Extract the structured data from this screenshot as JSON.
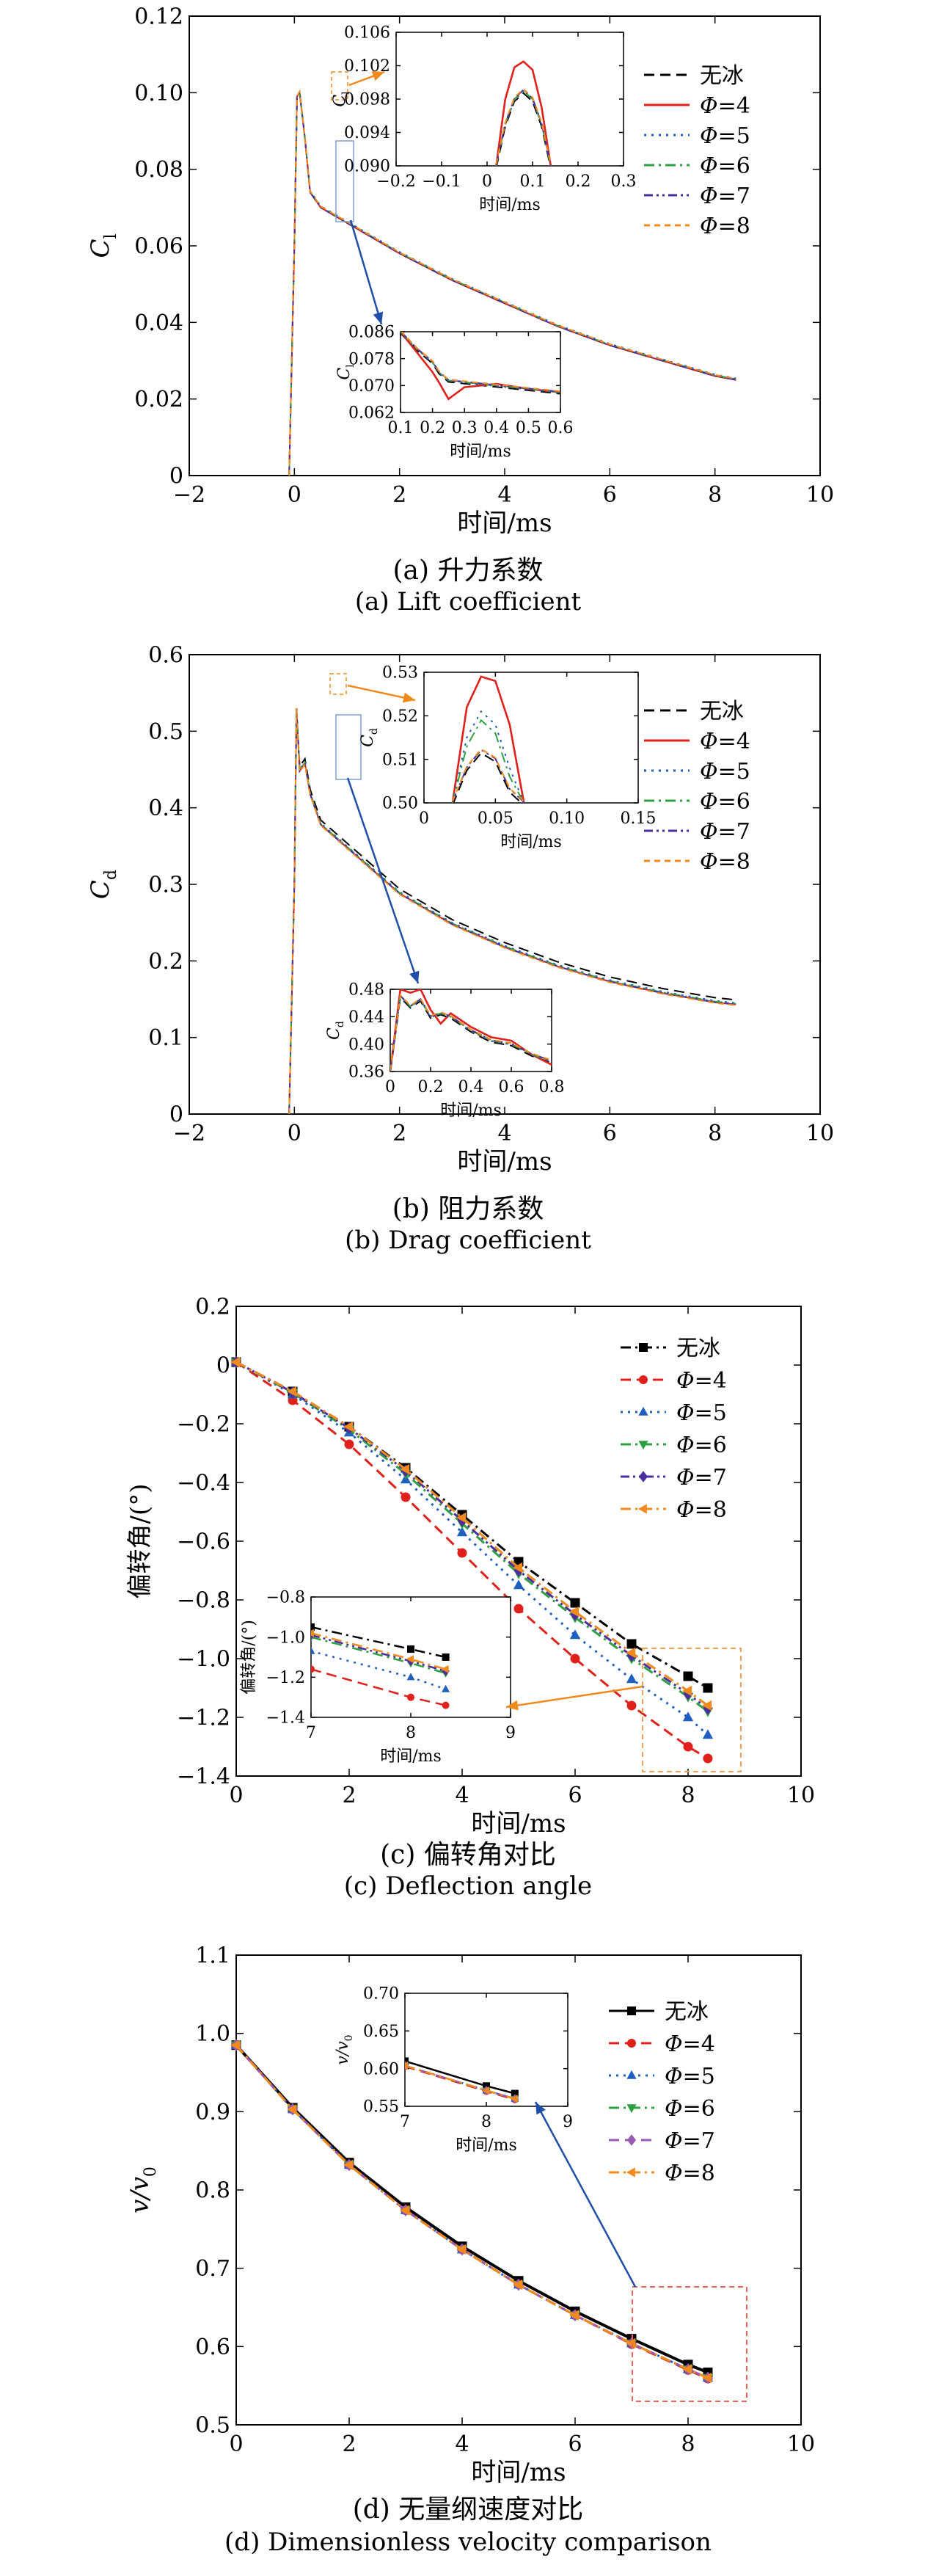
{
  "chart_data": [
    {
      "type": "line",
      "xlabel": "时间/ms",
      "ylabel": "C_l",
      "xlim": [
        -2,
        10
      ],
      "ylim": [
        0,
        0.12
      ],
      "xticks": [
        -2,
        0,
        2,
        4,
        6,
        8,
        10
      ],
      "yticks": [
        0,
        0.02,
        0.04,
        0.06,
        0.08,
        0.1,
        0.12
      ],
      "ytick_labels": [
        "0",
        "0.02",
        "0.04",
        "0.06",
        "0.08",
        "0.10",
        "0.12"
      ],
      "legend_position": "top-right",
      "caption_cn": "(a) 升力系数",
      "caption_en": "(a) Lift coefficient",
      "series": [
        {
          "name": "无冰",
          "color": "#000000",
          "dash": "dashed"
        },
        {
          "name": "Φ=4",
          "color": "#e0201b",
          "dash": "solid"
        },
        {
          "name": "Φ=5",
          "color": "#1f5fbf",
          "dash": "dotted"
        },
        {
          "name": "Φ=6",
          "color": "#2ea043",
          "dash": "dashdot"
        },
        {
          "name": "Φ=7",
          "color": "#4b2f9e",
          "dash": "dashdotdot"
        },
        {
          "name": "Φ=8",
          "color": "#f08a1c",
          "dash": "shortdash"
        }
      ],
      "main_curve": {
        "x": [
          -0.1,
          0.0,
          0.05,
          0.1,
          0.2,
          0.3,
          0.5,
          1,
          2,
          3,
          4,
          5,
          6,
          7,
          8,
          8.4
        ],
        "y": [
          0.0,
          0.06,
          0.099,
          0.1,
          0.088,
          0.074,
          0.07,
          0.066,
          0.058,
          0.051,
          0.045,
          0.039,
          0.034,
          0.03,
          0.026,
          0.025
        ]
      },
      "inset_top": {
        "xlabel": "时间/ms",
        "ylabel": "C_l",
        "xlim": [
          -0.2,
          0.3
        ],
        "ylim": [
          0.09,
          0.106
        ],
        "xticks": [
          -0.2,
          -0.1,
          0,
          0.1,
          0.2,
          0.3
        ],
        "yticks": [
          0.09,
          0.094,
          0.098,
          0.102,
          0.106
        ],
        "ytick_labels": [
          "0.090",
          "0.094",
          "0.098",
          "0.102",
          "0.106"
        ],
        "curves": {
          "x": [
            0.02,
            0.04,
            0.06,
            0.08,
            0.1,
            0.12,
            0.14
          ],
          "phi4": [
            0.09,
            0.098,
            0.1018,
            0.1025,
            0.1015,
            0.097,
            0.09
          ],
          "others": [
            0.09,
            0.095,
            0.098,
            0.099,
            0.098,
            0.095,
            0.09
          ]
        }
      },
      "inset_bottom": {
        "xlabel": "时间/ms",
        "ylabel": "C_l",
        "xlim": [
          0.1,
          0.6
        ],
        "ylim": [
          0.062,
          0.086
        ],
        "xticks": [
          0.1,
          0.2,
          0.3,
          0.4,
          0.5,
          0.6
        ],
        "yticks": [
          0.062,
          0.07,
          0.078,
          0.086
        ],
        "ytick_labels": [
          "0.062",
          "0.070",
          "0.078",
          "0.086"
        ],
        "curves": {
          "x": [
            0.1,
            0.15,
            0.2,
            0.22,
            0.25,
            0.3,
            0.4,
            0.5,
            0.6
          ],
          "phi4": [
            0.086,
            0.08,
            0.074,
            0.071,
            0.066,
            0.0695,
            0.0705,
            0.069,
            0.068
          ],
          "others": [
            0.086,
            0.081,
            0.077,
            0.074,
            0.0715,
            0.071,
            0.07,
            0.069,
            0.068
          ]
        }
      }
    },
    {
      "type": "line",
      "xlabel": "时间/ms",
      "ylabel": "C_d",
      "xlim": [
        -2,
        10
      ],
      "ylim": [
        0,
        0.6
      ],
      "xticks": [
        -2,
        0,
        2,
        4,
        6,
        8,
        10
      ],
      "yticks": [
        0,
        0.1,
        0.2,
        0.3,
        0.4,
        0.5,
        0.6
      ],
      "ytick_labels": [
        "0",
        "0.1",
        "0.2",
        "0.3",
        "0.4",
        "0.5",
        "0.6"
      ],
      "legend_position": "top-right",
      "caption_cn": "(b) 阻力系数",
      "caption_en": "(b) Drag coefficient",
      "series": [
        {
          "name": "无冰",
          "color": "#000000",
          "dash": "dashed"
        },
        {
          "name": "Φ=4",
          "color": "#e0201b",
          "dash": "solid"
        },
        {
          "name": "Φ=5",
          "color": "#1f5fbf",
          "dash": "dotted"
        },
        {
          "name": "Φ=6",
          "color": "#2ea043",
          "dash": "dashdot"
        },
        {
          "name": "Φ=7",
          "color": "#4b2f9e",
          "dash": "dashdotdot"
        },
        {
          "name": "Φ=8",
          "color": "#f08a1c",
          "dash": "shortdash"
        }
      ],
      "main_curve": {
        "x": [
          -0.1,
          0.0,
          0.04,
          0.1,
          0.2,
          0.3,
          0.5,
          1,
          2,
          3,
          4,
          5,
          6,
          7,
          8,
          8.4
        ],
        "y": [
          0.0,
          0.3,
          0.53,
          0.45,
          0.46,
          0.42,
          0.38,
          0.35,
          0.29,
          0.25,
          0.22,
          0.195,
          0.175,
          0.16,
          0.148,
          0.145
        ]
      },
      "inset_top": {
        "xlabel": "时间/ms",
        "ylabel": "C_d",
        "xlim": [
          0,
          0.15
        ],
        "ylim": [
          0.5,
          0.53
        ],
        "xticks": [
          0,
          0.05,
          0.1,
          0.15
        ],
        "xtick_labels": [
          "0",
          "0.05",
          "0.10",
          "0.15"
        ],
        "yticks": [
          0.5,
          0.51,
          0.52,
          0.53
        ],
        "ytick_labels": [
          "0.50",
          "0.51",
          "0.52",
          "0.53"
        ],
        "curves": {
          "x": [
            0.02,
            0.03,
            0.04,
            0.05,
            0.06,
            0.07
          ],
          "phi4": [
            0.5,
            0.522,
            0.529,
            0.528,
            0.518,
            0.5
          ],
          "phi5": [
            0.5,
            0.515,
            0.521,
            0.518,
            0.508,
            0.5
          ],
          "phi6": [
            0.5,
            0.513,
            0.519,
            0.516,
            0.506,
            0.5
          ],
          "others": [
            0.5,
            0.508,
            0.512,
            0.51,
            0.503,
            0.5
          ]
        }
      },
      "inset_bottom": {
        "xlabel": "时间/ms",
        "ylabel": "C_d",
        "xlim": [
          0,
          0.8
        ],
        "ylim": [
          0.36,
          0.48
        ],
        "xticks": [
          0,
          0.2,
          0.4,
          0.6,
          0.8
        ],
        "yticks": [
          0.36,
          0.4,
          0.44,
          0.48
        ],
        "ytick_labels": [
          "0.36",
          "0.40",
          "0.44",
          "0.48"
        ],
        "curves": {
          "x": [
            0.0,
            0.05,
            0.1,
            0.15,
            0.2,
            0.25,
            0.3,
            0.4,
            0.5,
            0.6,
            0.7,
            0.8
          ],
          "phi4": [
            0.36,
            0.48,
            0.475,
            0.48,
            0.45,
            0.43,
            0.445,
            0.425,
            0.41,
            0.405,
            0.385,
            0.37
          ],
          "others": [
            0.36,
            0.47,
            0.455,
            0.465,
            0.44,
            0.445,
            0.44,
            0.42,
            0.405,
            0.4,
            0.385,
            0.375
          ]
        }
      }
    },
    {
      "type": "line",
      "xlabel": "时间/ms",
      "ylabel": "偏转角/(°)",
      "xlim": [
        0,
        10
      ],
      "ylim": [
        -1.4,
        0.2
      ],
      "xticks": [
        0,
        2,
        4,
        6,
        8,
        10
      ],
      "yticks": [
        -1.4,
        -1.2,
        -1.0,
        -0.8,
        -0.6,
        -0.4,
        -0.2,
        0,
        0.2
      ],
      "ytick_labels": [
        "-1.4",
        "-1.2",
        "-1.0",
        "-0.8",
        "-0.6",
        "-0.4",
        "-0.2",
        "0",
        "0.2"
      ],
      "legend_position": "top-right",
      "caption_cn": "(c) 偏转角对比",
      "caption_en": "(c) Deflection angle",
      "x": [
        0,
        1,
        2,
        3,
        4,
        5,
        6,
        7,
        8,
        8.35
      ],
      "series": [
        {
          "name": "无冰",
          "color": "#000000",
          "dash": "dashdot",
          "marker": "square",
          "values": [
            0.01,
            -0.09,
            -0.21,
            -0.35,
            -0.51,
            -0.67,
            -0.81,
            -0.95,
            -1.06,
            -1.1
          ]
        },
        {
          "name": "Φ=4",
          "color": "#e0201b",
          "dash": "dashed",
          "marker": "circle",
          "values": [
            0.01,
            -0.12,
            -0.27,
            -0.45,
            -0.64,
            -0.83,
            -1.0,
            -1.16,
            -1.3,
            -1.34
          ]
        },
        {
          "name": "Φ=5",
          "color": "#1f5fbf",
          "dash": "dotted",
          "marker": "triangle",
          "values": [
            0.01,
            -0.1,
            -0.23,
            -0.39,
            -0.57,
            -0.75,
            -0.92,
            -1.07,
            -1.2,
            -1.26
          ]
        },
        {
          "name": "Φ=6",
          "color": "#2ea043",
          "dash": "dashdot",
          "marker": "triangle-down",
          "values": [
            0.01,
            -0.095,
            -0.22,
            -0.37,
            -0.54,
            -0.71,
            -0.86,
            -1.0,
            -1.13,
            -1.18
          ]
        },
        {
          "name": "Φ=7",
          "color": "#4b2f9e",
          "dash": "dashdotdot",
          "marker": "diamond",
          "values": [
            0.01,
            -0.093,
            -0.215,
            -0.36,
            -0.53,
            -0.7,
            -0.85,
            -0.99,
            -1.12,
            -1.17
          ]
        },
        {
          "name": "Φ=8",
          "color": "#f08a1c",
          "dash": "dashdot",
          "marker": "triangle-left",
          "values": [
            0.01,
            -0.09,
            -0.21,
            -0.355,
            -0.52,
            -0.69,
            -0.84,
            -0.98,
            -1.11,
            -1.16
          ]
        }
      ],
      "inset": {
        "xlabel": "时间/ms",
        "ylabel": "偏转角/(°)",
        "xlim": [
          7,
          9
        ],
        "ylim": [
          -1.4,
          -0.8
        ],
        "xticks": [
          7,
          8,
          9
        ],
        "yticks": [
          -1.4,
          -1.2,
          -1.0,
          -0.8
        ],
        "ytick_labels": [
          "-1.4",
          "-1.2",
          "-1.0",
          "-0.8"
        ]
      }
    },
    {
      "type": "line",
      "xlabel": "时间/ms",
      "ylabel": "v/v_0",
      "xlim": [
        0,
        10
      ],
      "ylim": [
        0.5,
        1.1
      ],
      "xticks": [
        0,
        2,
        4,
        6,
        8,
        10
      ],
      "yticks": [
        0.5,
        0.6,
        0.7,
        0.8,
        0.9,
        1.0,
        1.1
      ],
      "ytick_labels": [
        "0.5",
        "0.6",
        "0.7",
        "0.8",
        "0.9",
        "1.0",
        "1.1"
      ],
      "legend_position": "top-right",
      "caption_cn": "(d) 无量纲速度对比",
      "caption_en": "(d) Dimensionless velocity comparison",
      "x": [
        0,
        1,
        2,
        3,
        4,
        5,
        6,
        7,
        8,
        8.35
      ],
      "series": [
        {
          "name": "无冰",
          "color": "#000000",
          "dash": "solid",
          "marker": "square",
          "values": [
            0.985,
            0.905,
            0.835,
            0.778,
            0.728,
            0.684,
            0.645,
            0.61,
            0.577,
            0.567
          ]
        },
        {
          "name": "Φ=4",
          "color": "#e0201b",
          "dash": "dashed",
          "marker": "circle",
          "values": [
            0.985,
            0.903,
            0.832,
            0.774,
            0.724,
            0.679,
            0.64,
            0.603,
            0.57,
            0.559
          ]
        },
        {
          "name": "Φ=5",
          "color": "#1f5fbf",
          "dash": "dotted",
          "marker": "triangle",
          "values": [
            0.985,
            0.903,
            0.832,
            0.774,
            0.724,
            0.679,
            0.64,
            0.604,
            0.571,
            0.56
          ]
        },
        {
          "name": "Φ=6",
          "color": "#2ea043",
          "dash": "dashdot",
          "marker": "triangle-down",
          "values": [
            0.985,
            0.903,
            0.832,
            0.774,
            0.724,
            0.679,
            0.64,
            0.604,
            0.571,
            0.56
          ]
        },
        {
          "name": "Φ=7",
          "color": "#9b59b6",
          "dash": "dashed",
          "marker": "diamond",
          "values": [
            0.985,
            0.903,
            0.832,
            0.774,
            0.724,
            0.679,
            0.64,
            0.604,
            0.571,
            0.56
          ]
        },
        {
          "name": "Φ=8",
          "color": "#f08a1c",
          "dash": "dashdot",
          "marker": "triangle-left",
          "values": [
            0.985,
            0.903,
            0.832,
            0.774,
            0.724,
            0.679,
            0.64,
            0.604,
            0.571,
            0.56
          ]
        }
      ],
      "inset": {
        "xlabel": "时间/ms",
        "ylabel": "v/v_0",
        "xlim": [
          7,
          9
        ],
        "ylim": [
          0.55,
          0.7
        ],
        "xticks": [
          7,
          8,
          9
        ],
        "yticks": [
          0.55,
          0.6,
          0.65,
          0.7
        ],
        "ytick_labels": [
          "0.55",
          "0.60",
          "0.65",
          "0.70"
        ]
      }
    }
  ]
}
